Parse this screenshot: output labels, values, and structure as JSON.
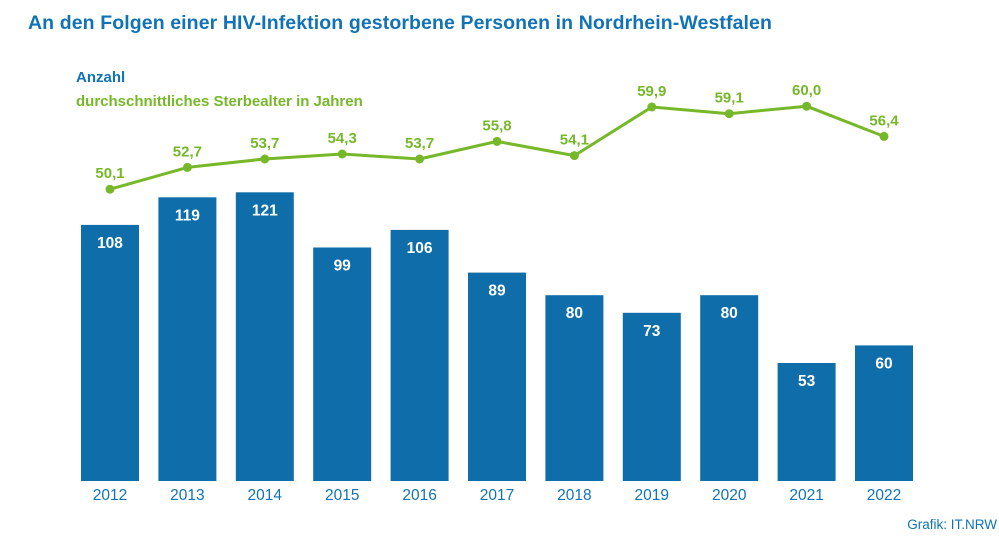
{
  "title": "An den Folgen einer HIV-Infektion gestorbene Personen in Nordrhein-Westfalen",
  "legend": {
    "bars_label": "Anzahl",
    "line_label": "durchschnittliches Sterbealter in Jahren"
  },
  "footer": {
    "credit": "Grafik: IT.NRW"
  },
  "colors": {
    "bar_blue": "#0f6ea9",
    "text_blue": "#1173b5",
    "line_green": "#76b82a",
    "bar_label_white": "#ffffff",
    "background": "#ffffff"
  },
  "chart_data": {
    "type": "bar",
    "subtype": "bar-and-line-combo",
    "title": "An den Folgen einer HIV-Infektion gestorbene Personen in Nordrhein-Westfalen",
    "categories": [
      "2012",
      "2013",
      "2014",
      "2015",
      "2016",
      "2017",
      "2018",
      "2019",
      "2020",
      "2021",
      "2022"
    ],
    "series": [
      {
        "name": "Anzahl",
        "type": "bar",
        "values": [
          108,
          119,
          121,
          99,
          106,
          89,
          80,
          73,
          80,
          53,
          60
        ],
        "labels": [
          "108",
          "119",
          "121",
          "99",
          "106",
          "89",
          "80",
          "73",
          "80",
          "53",
          "60"
        ],
        "color": "#0f6ea9"
      },
      {
        "name": "durchschnittliches Sterbealter in Jahren",
        "type": "line",
        "values": [
          50.1,
          52.7,
          53.7,
          54.3,
          53.7,
          55.8,
          54.1,
          59.9,
          59.1,
          60.0,
          56.4
        ],
        "labels": [
          "50,1",
          "52,7",
          "53,7",
          "54,3",
          "53,7",
          "55,8",
          "54,1",
          "59,9",
          "59,1",
          "60,0",
          "56,4"
        ],
        "color": "#76b82a"
      }
    ],
    "xlabel": "",
    "ylabel": "",
    "grid": false,
    "axes_visible": false,
    "value_labels": true,
    "legend_position": "top-left",
    "bar_value_label_position": "inside-top",
    "line_value_label_position": "above-point"
  }
}
